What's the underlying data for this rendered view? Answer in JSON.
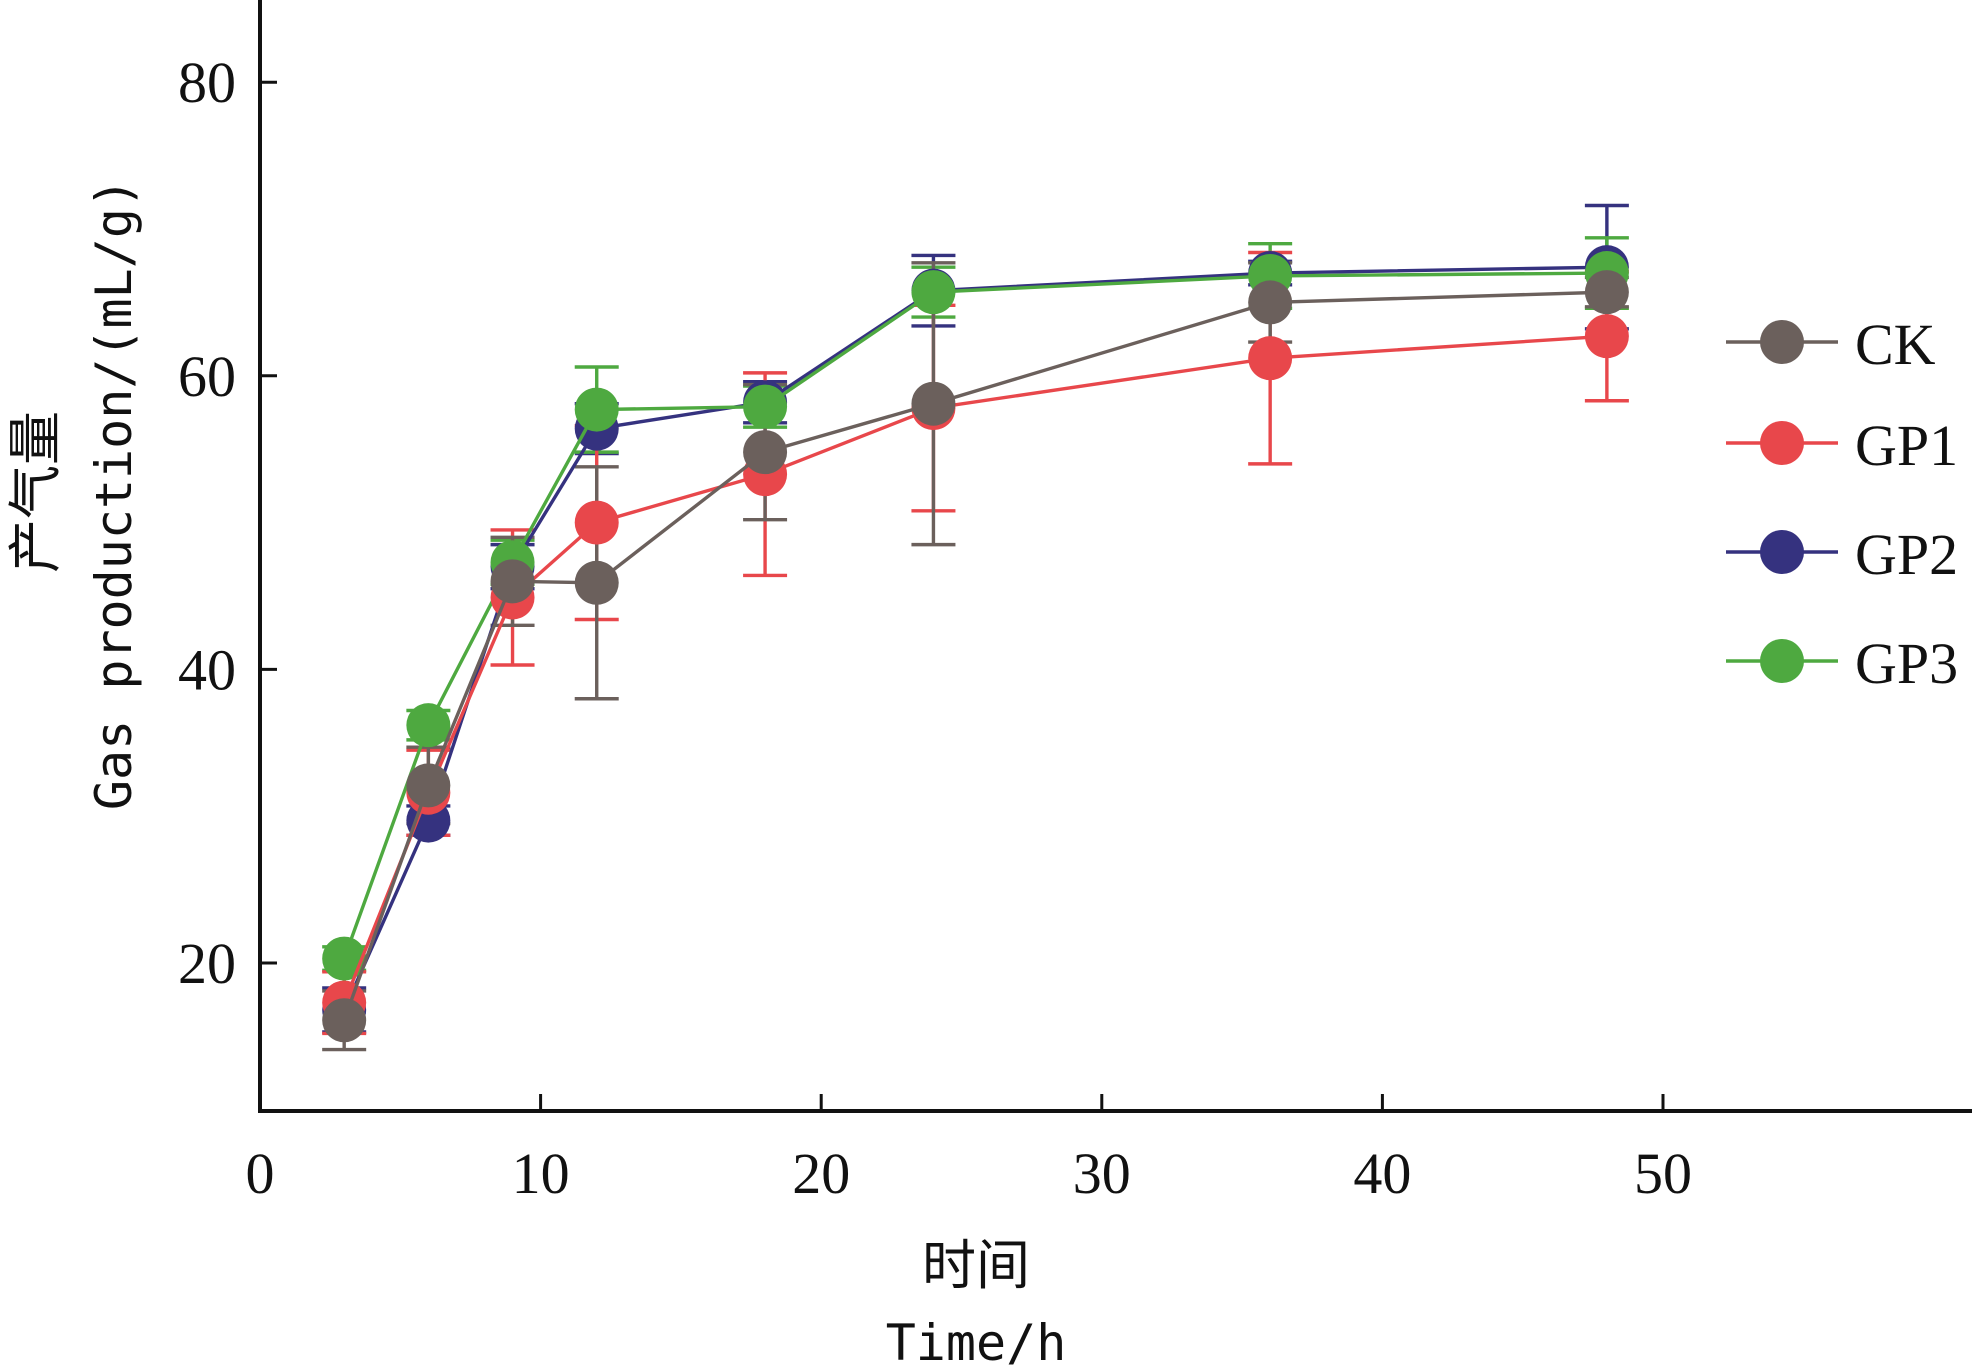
{
  "chart_data": {
    "type": "line",
    "title": "",
    "xlabel_cn": "时间",
    "xlabel": "Time/h",
    "ylabel_cn": "产气量",
    "ylabel": "Gas production/(mL/g)",
    "xlim": [
      0,
      60
    ],
    "ylim": [
      10,
      85
    ],
    "xticks": [
      0,
      10,
      20,
      30,
      40,
      50
    ],
    "yticks": [
      20,
      40,
      60,
      80
    ],
    "grid": false,
    "legend_position": "right",
    "x": [
      3,
      6,
      9,
      12,
      18,
      24,
      36,
      48
    ],
    "series": [
      {
        "name": "CK",
        "color": "#6b605c",
        "values": [
          16.1,
          32.1,
          46.0,
          45.9,
          54.8,
          58.1,
          65.0,
          65.7
        ],
        "error": [
          2.0,
          2.6,
          3.0,
          7.9,
          4.6,
          9.6,
          2.7,
          1.0
        ]
      },
      {
        "name": "GP1",
        "color": "#e8474b",
        "values": [
          17.3,
          31.6,
          44.9,
          50.0,
          53.3,
          57.8,
          61.2,
          62.7
        ],
        "error": [
          2.1,
          2.9,
          4.6,
          6.6,
          6.9,
          7.0,
          7.2,
          4.4
        ]
      },
      {
        "name": "GP2",
        "color": "#35327f",
        "values": [
          16.8,
          29.7,
          47.0,
          56.4,
          58.2,
          65.8,
          67.0,
          67.4
        ],
        "error": [
          1.5,
          1.0,
          1.5,
          1.7,
          1.4,
          2.4,
          0.8,
          4.2
        ]
      },
      {
        "name": "GP3",
        "color": "#4ea940",
        "values": [
          20.3,
          36.2,
          47.3,
          57.7,
          57.9,
          65.7,
          66.8,
          67.0
        ],
        "error": [
          0.8,
          1.0,
          1.5,
          2.9,
          1.4,
          1.7,
          2.2,
          2.4
        ]
      }
    ]
  }
}
